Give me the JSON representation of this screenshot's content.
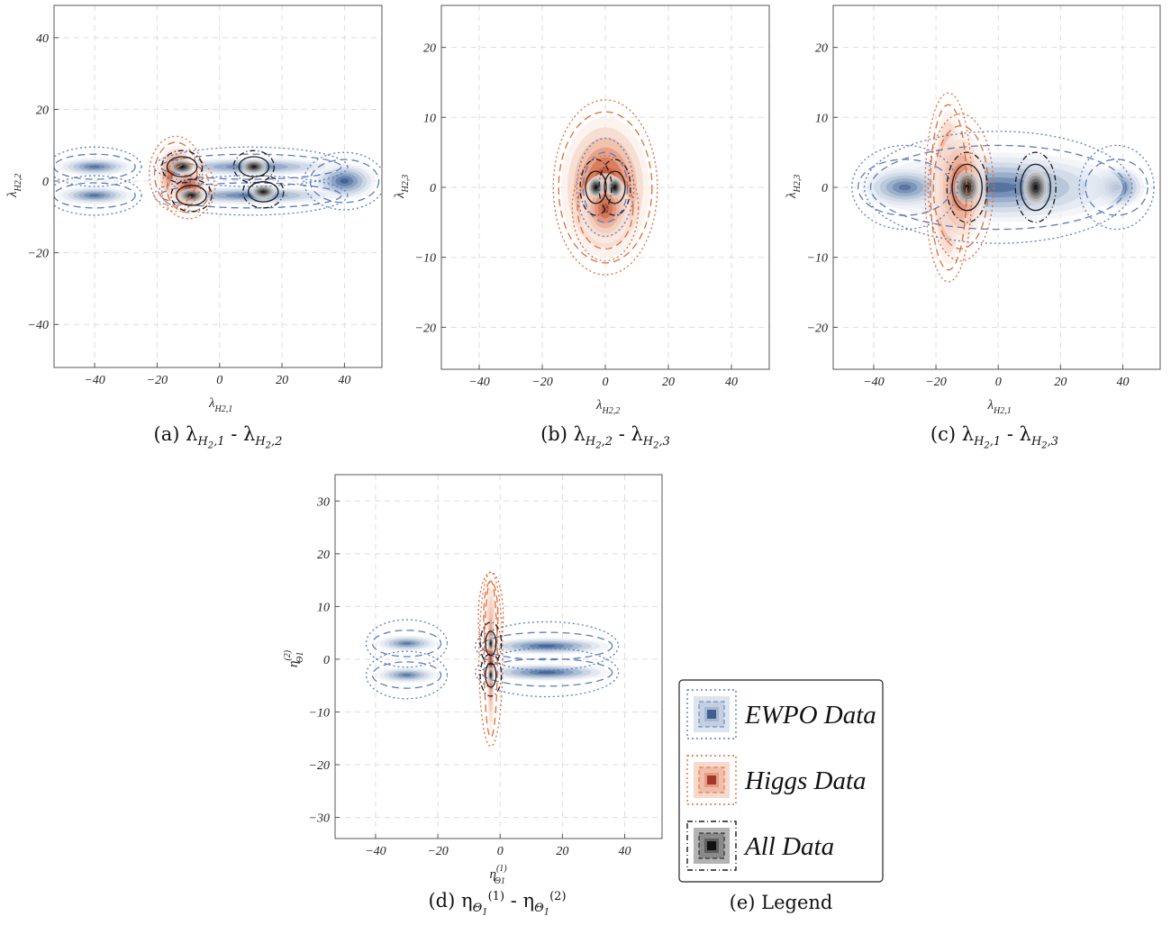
{
  "palette": {
    "ewpo": [
      "#eef1f6",
      "#dde4ee",
      "#c4d0e1",
      "#a6b8d1",
      "#849dbf",
      "#5f7ea9",
      "#3e5f8f"
    ],
    "higgs": [
      "#fbeee8",
      "#f6d9cc",
      "#f0bea9",
      "#e59c83",
      "#d67858",
      "#c0553a",
      "#a3382a"
    ],
    "all": [
      "#d6d6d6",
      "#b3b3b3",
      "#8a8a8a",
      "#5e5e5e",
      "#333333",
      "#111111"
    ],
    "ewpo_line": "#5b7cbf",
    "higgs_line": "#e36a35",
    "all_line": "#1a1a1a",
    "grid": "#dddddd"
  },
  "chart_data": [
    {
      "id": "a",
      "type": "heatmap",
      "caption": "(a) λH2,1 - λH2,2",
      "caption_parts": {
        "pre": "(a) λ",
        "sub1": "H",
        "sub1b": "2",
        "sub1c": ",1",
        "mid": " - λ",
        "sub2": "H",
        "sub2b": "2",
        "sub2c": ",2"
      },
      "xlabel": {
        "main": "λ",
        "sub": "H2,1"
      },
      "ylabel": {
        "main": "λ",
        "sub": "H2,2"
      },
      "xlim": [
        -53,
        52
      ],
      "ylim": [
        -52,
        49
      ],
      "xticks": [
        -40,
        -20,
        0,
        20,
        40
      ],
      "yticks": [
        -40,
        -20,
        0,
        20,
        40
      ],
      "grid": true,
      "ewpo_blobs": [
        {
          "cx": 40,
          "cy": 0,
          "rx": 10,
          "ry": 5,
          "w": 1.0
        },
        {
          "cx": 10,
          "cy": 4,
          "rx": 28,
          "ry": 2.5,
          "w": 0.6
        },
        {
          "cx": 10,
          "cy": -4,
          "rx": 28,
          "ry": 2.5,
          "w": 0.6
        },
        {
          "cx": -40,
          "cy": 4,
          "rx": 12,
          "ry": 2.5,
          "w": 0.55
        },
        {
          "cx": -40,
          "cy": -4,
          "rx": 12,
          "ry": 2.5,
          "w": 0.55
        }
      ],
      "higgs_blobs": [
        {
          "cx": -14,
          "cy": 2,
          "rx": 6,
          "ry": 8,
          "w": 1.0
        },
        {
          "cx": -10,
          "cy": -2,
          "rx": 6,
          "ry": 6,
          "w": 0.7
        }
      ],
      "all_blobs": [
        {
          "cx": -12,
          "cy": 4,
          "rx": 4,
          "ry": 2,
          "w": 1.0
        },
        {
          "cx": -9,
          "cy": -4,
          "rx": 4,
          "ry": 2,
          "w": 0.8
        },
        {
          "cx": 11,
          "cy": 4,
          "rx": 4,
          "ry": 2,
          "w": 0.8
        },
        {
          "cx": 14,
          "cy": -3,
          "rx": 4,
          "ry": 2,
          "w": 0.7
        }
      ]
    },
    {
      "id": "b",
      "type": "heatmap",
      "caption": "(b) λH2,2 - λH2,3",
      "caption_parts": {
        "pre": "(b) λ",
        "sub1": "H",
        "sub1b": "2",
        "sub1c": ",2",
        "mid": " - λ",
        "sub2": "H",
        "sub2b": "2",
        "sub2c": ",3"
      },
      "xlabel": {
        "main": "λ",
        "sub": "H2,2"
      },
      "ylabel": {
        "main": "λ",
        "sub": "H2,3"
      },
      "xlim": [
        -52,
        52
      ],
      "ylim": [
        -26,
        26
      ],
      "xticks": [
        -40,
        -20,
        0,
        20,
        40
      ],
      "yticks": [
        -20,
        -10,
        0,
        10,
        20
      ],
      "grid": true,
      "ewpo_blobs": [
        {
          "cx": 0,
          "cy": 0,
          "rx": 6,
          "ry": 4,
          "w": 0.4
        }
      ],
      "higgs_blobs": [
        {
          "cx": 0,
          "cy": 0,
          "rx": 14,
          "ry": 10,
          "w": 1.0
        },
        {
          "cx": 0,
          "cy": -3,
          "rx": 8,
          "ry": 5,
          "w": 0.4
        }
      ],
      "all_blobs": [
        {
          "cx": -3,
          "cy": 0,
          "rx": 2.5,
          "ry": 1.5,
          "w": 1.0
        },
        {
          "cx": 3,
          "cy": 0,
          "rx": 2.5,
          "ry": 1.5,
          "w": 1.0
        }
      ]
    },
    {
      "id": "c",
      "type": "heatmap",
      "caption": "(c) λH2,1 - λH2,3",
      "caption_parts": {
        "pre": "(c) λ",
        "sub1": "H",
        "sub1b": "2",
        "sub1c": ",1",
        "mid": " - λ",
        "sub2": "H",
        "sub2b": "2",
        "sub2c": ",3"
      },
      "xlabel": {
        "main": "λ",
        "sub": "H2,1"
      },
      "ylabel": {
        "main": "λ",
        "sub": "H2,3"
      },
      "xlim": [
        -53,
        52
      ],
      "ylim": [
        -26,
        26
      ],
      "xticks": [
        -40,
        -20,
        0,
        20,
        40
      ],
      "yticks": [
        -20,
        -10,
        0,
        10,
        20
      ],
      "grid": true,
      "ewpo_blobs": [
        {
          "cx": 38,
          "cy": 0,
          "rx": 9,
          "ry": 3,
          "w": 1.0
        },
        {
          "cx": 0,
          "cy": 0,
          "rx": 40,
          "ry": 5,
          "w": 0.55
        },
        {
          "cx": -30,
          "cy": 0,
          "rx": 14,
          "ry": 3,
          "w": 0.5
        }
      ],
      "higgs_blobs": [
        {
          "cx": -16,
          "cy": 0,
          "rx": 5,
          "ry": 11,
          "w": 1.0
        },
        {
          "cx": -12,
          "cy": 0,
          "rx": 8,
          "ry": 8,
          "w": 0.5
        }
      ],
      "all_blobs": [
        {
          "cx": -10,
          "cy": 0,
          "rx": 4,
          "ry": 2.5,
          "w": 1.0
        },
        {
          "cx": 12,
          "cy": 0,
          "rx": 4,
          "ry": 2.5,
          "w": 0.85
        }
      ]
    },
    {
      "id": "d",
      "type": "heatmap",
      "caption": "(d) ηΘ1(1) - ηΘ1(2)",
      "caption_parts": {
        "pre": "(d) η",
        "sub1": "Θ",
        "sub1b": "1",
        "sup1": "(1)",
        "mid": " - η",
        "sub2": "Θ",
        "sub2b": "1",
        "sup2": "(2)"
      },
      "xlabel": {
        "main": "η",
        "sub": "Θ1",
        "sup": "(1)"
      },
      "ylabel": {
        "main": "η",
        "sub": "Θ1",
        "sup": "(2)"
      },
      "xlim": [
        -53,
        52
      ],
      "ylim": [
        -34,
        35
      ],
      "xticks": [
        -40,
        -20,
        0,
        20,
        40
      ],
      "yticks": [
        -30,
        -20,
        -10,
        0,
        10,
        20,
        30
      ],
      "grid": true,
      "ewpo_blobs": [
        {
          "cx": 15,
          "cy": 2.5,
          "rx": 20,
          "ry": 1.6,
          "w": 1.0
        },
        {
          "cx": 15,
          "cy": -2.5,
          "rx": 20,
          "ry": 1.6,
          "w": 1.0
        },
        {
          "cx": -30,
          "cy": 3,
          "rx": 10,
          "ry": 1.5,
          "w": 0.45
        },
        {
          "cx": -30,
          "cy": -3,
          "rx": 10,
          "ry": 1.5,
          "w": 0.45
        }
      ],
      "higgs_blobs": [
        {
          "cx": -3,
          "cy": 8,
          "rx": 1.5,
          "ry": 6,
          "w": 1.0
        },
        {
          "cx": -3,
          "cy": 0,
          "rx": 1.3,
          "ry": 14,
          "w": 0.6
        }
      ],
      "all_blobs": [
        {
          "cx": -3,
          "cy": 3,
          "rx": 0.9,
          "ry": 1.5,
          "w": 1.0
        },
        {
          "cx": -3,
          "cy": -3,
          "rx": 0.9,
          "ry": 1.5,
          "w": 0.85
        }
      ]
    }
  ],
  "legend": {
    "caption": "(e) Legend",
    "items": [
      {
        "label": "EWPO Data",
        "key": "ewpo"
      },
      {
        "label": "Higgs Data",
        "key": "higgs"
      },
      {
        "label": "All Data",
        "key": "all"
      }
    ]
  }
}
